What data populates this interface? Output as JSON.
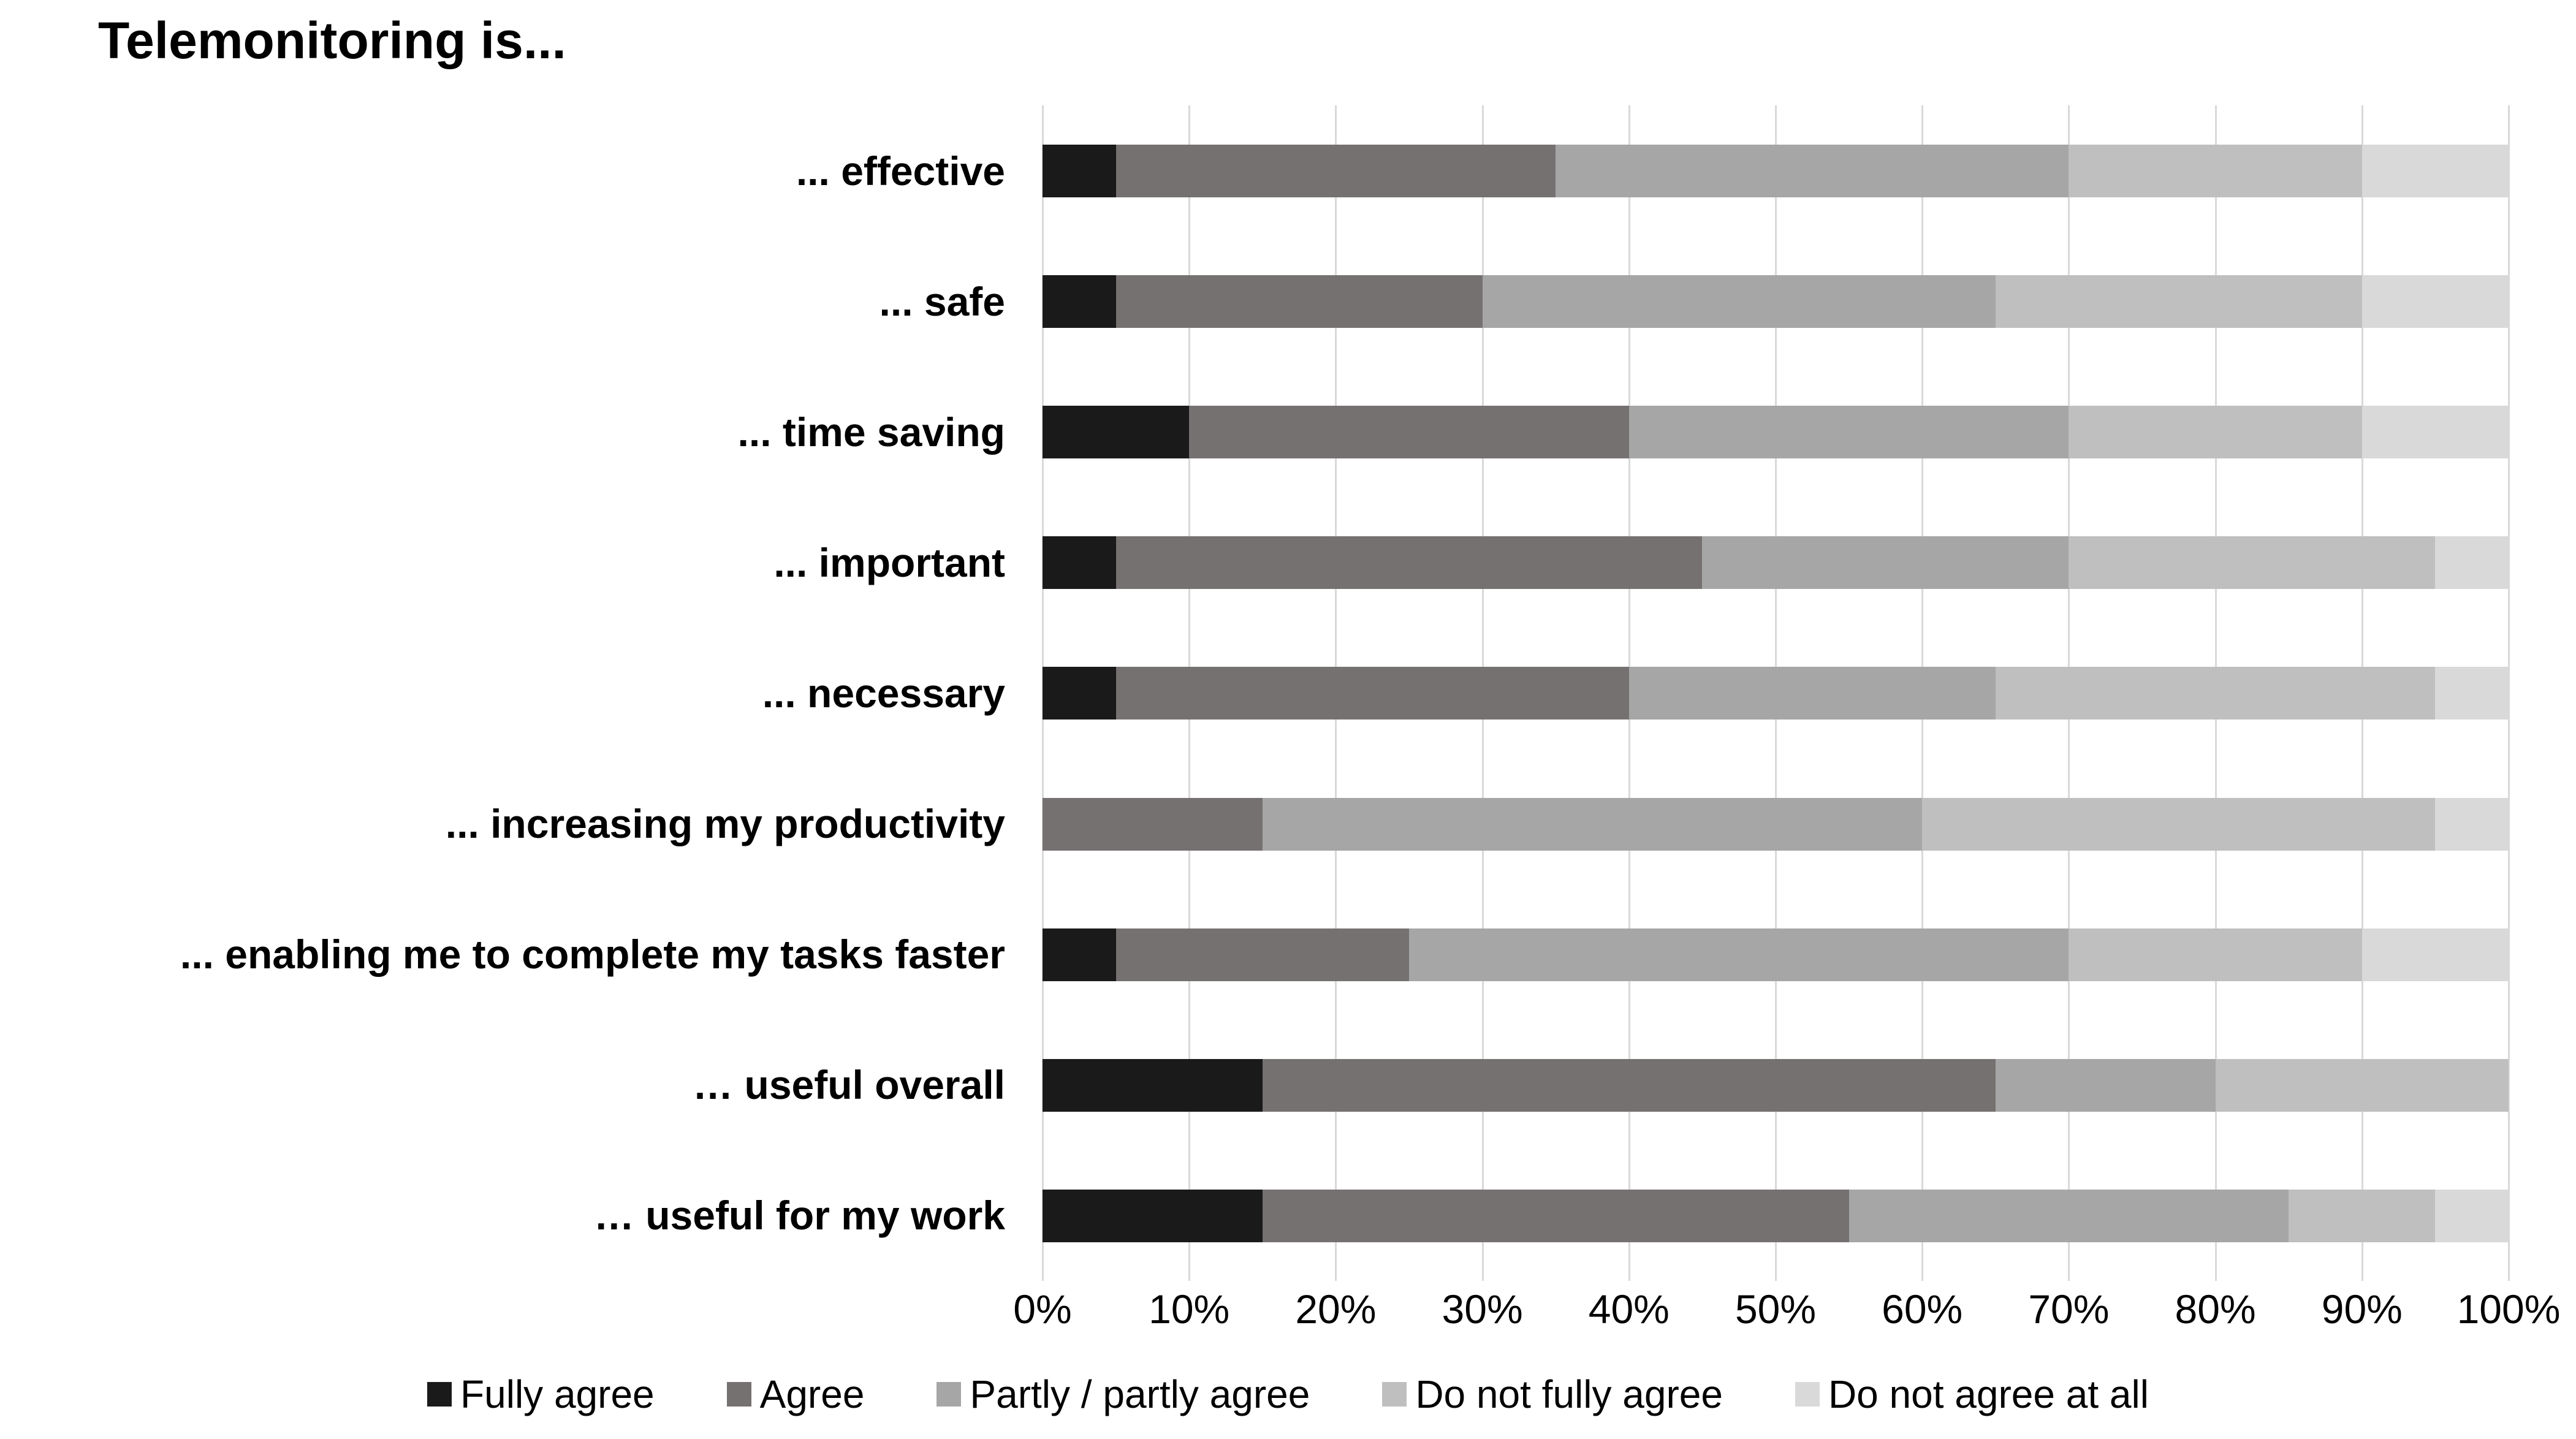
{
  "title": "Telemonitoring is...",
  "chart_data": {
    "type": "bar",
    "stacked": true,
    "orientation": "horizontal",
    "title": "Telemonitoring is...",
    "xlabel": "",
    "ylabel": "",
    "xlim": [
      0,
      100
    ],
    "grid": "vertical",
    "legend_position": "bottom",
    "x_ticks": [
      "0%",
      "10%",
      "20%",
      "30%",
      "40%",
      "50%",
      "60%",
      "70%",
      "80%",
      "90%",
      "100%"
    ],
    "categories": [
      "... effective",
      "... safe",
      "... time saving",
      "... important",
      "... necessary",
      "... increasing my productivity",
      "... enabling me to complete my tasks faster",
      "… useful overall",
      "… useful for my work"
    ],
    "series": [
      {
        "name": "Fully agree",
        "color": "#1a1a1a",
        "values": [
          5,
          5,
          10,
          5,
          5,
          0,
          5,
          15,
          15
        ]
      },
      {
        "name": "Agree",
        "color": "#767171",
        "values": [
          30,
          25,
          30,
          40,
          35,
          15,
          20,
          50,
          40
        ]
      },
      {
        "name": "Partly / partly agree",
        "color": "#a6a6a6",
        "values": [
          35,
          35,
          30,
          25,
          25,
          45,
          45,
          15,
          30
        ]
      },
      {
        "name": "Do not fully agree",
        "color": "#bfbfbf",
        "values": [
          20,
          25,
          20,
          25,
          30,
          35,
          20,
          20,
          10
        ]
      },
      {
        "name": "Do not agree at all",
        "color": "#d9d9d9",
        "values": [
          10,
          10,
          10,
          5,
          5,
          5,
          10,
          0,
          5
        ]
      }
    ]
  }
}
